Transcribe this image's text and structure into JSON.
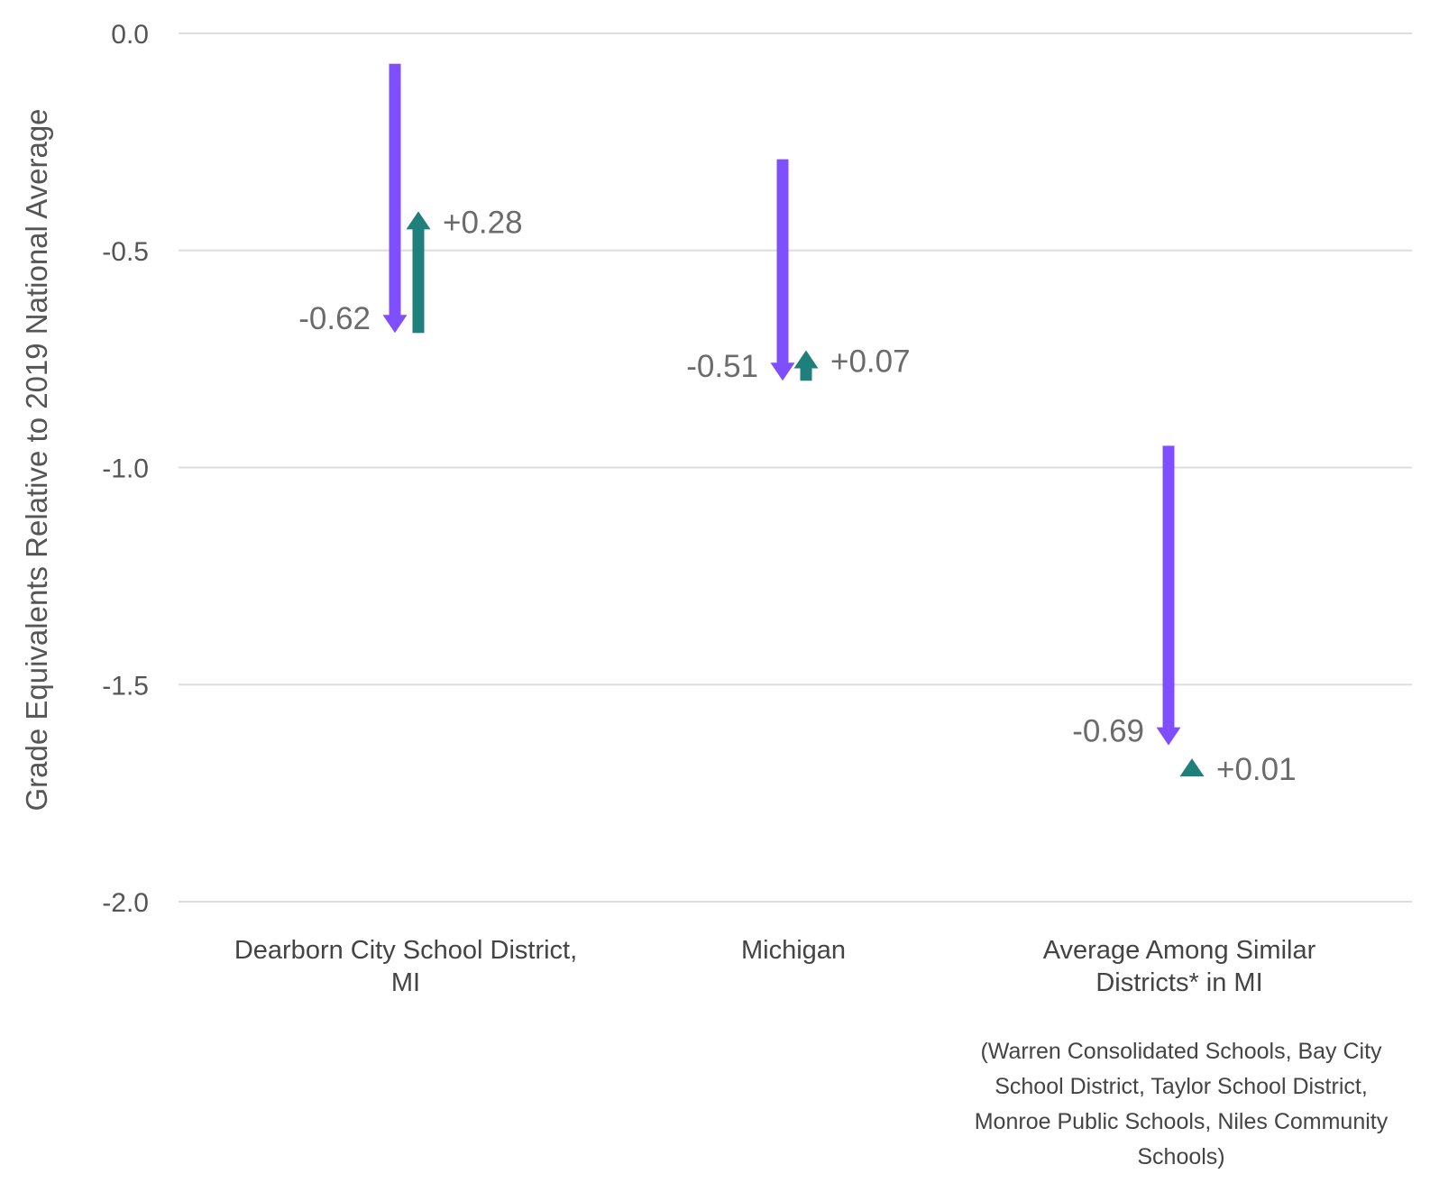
{
  "chart_data": {
    "type": "arrow",
    "title": "",
    "xlabel": "",
    "ylabel": "Grade Equivalents Relative to 2019 National Average",
    "ylim": [
      -2.0,
      0.0
    ],
    "yticks": [
      0.0,
      -0.5,
      -1.0,
      -1.5,
      -2.0
    ],
    "ytick_labels": [
      "0.0",
      "-0.5",
      "-1.0",
      "-1.5",
      "-2.0"
    ],
    "grid": true,
    "colors": {
      "decline": "#7f4fff",
      "recovery": "#1f7f7b"
    },
    "categories": [
      {
        "label_lines": [
          "Dearborn City School District,",
          "MI"
        ],
        "decline": {
          "start": -0.07,
          "end": -0.69,
          "label": "-0.62"
        },
        "recovery": {
          "start": -0.69,
          "end": -0.41,
          "label": "+0.28"
        }
      },
      {
        "label_lines": [
          "Michigan"
        ],
        "decline": {
          "start": -0.29,
          "end": -0.8,
          "label": "-0.51"
        },
        "recovery": {
          "start": -0.8,
          "end": -0.73,
          "label": "+0.07"
        }
      },
      {
        "label_lines": [
          "Average Among Similar",
          "Districts* in MI"
        ],
        "decline": {
          "start": -0.95,
          "end": -1.64,
          "label": "-0.69"
        },
        "recovery": {
          "start": -1.68,
          "end": -1.67,
          "label": "+0.01"
        }
      }
    ],
    "footnote_lines": [
      "(Warren Consolidated Schools, Bay City",
      "School District, Taylor School District,",
      "Monroe Public Schools, Niles Community",
      "Schools)"
    ]
  }
}
